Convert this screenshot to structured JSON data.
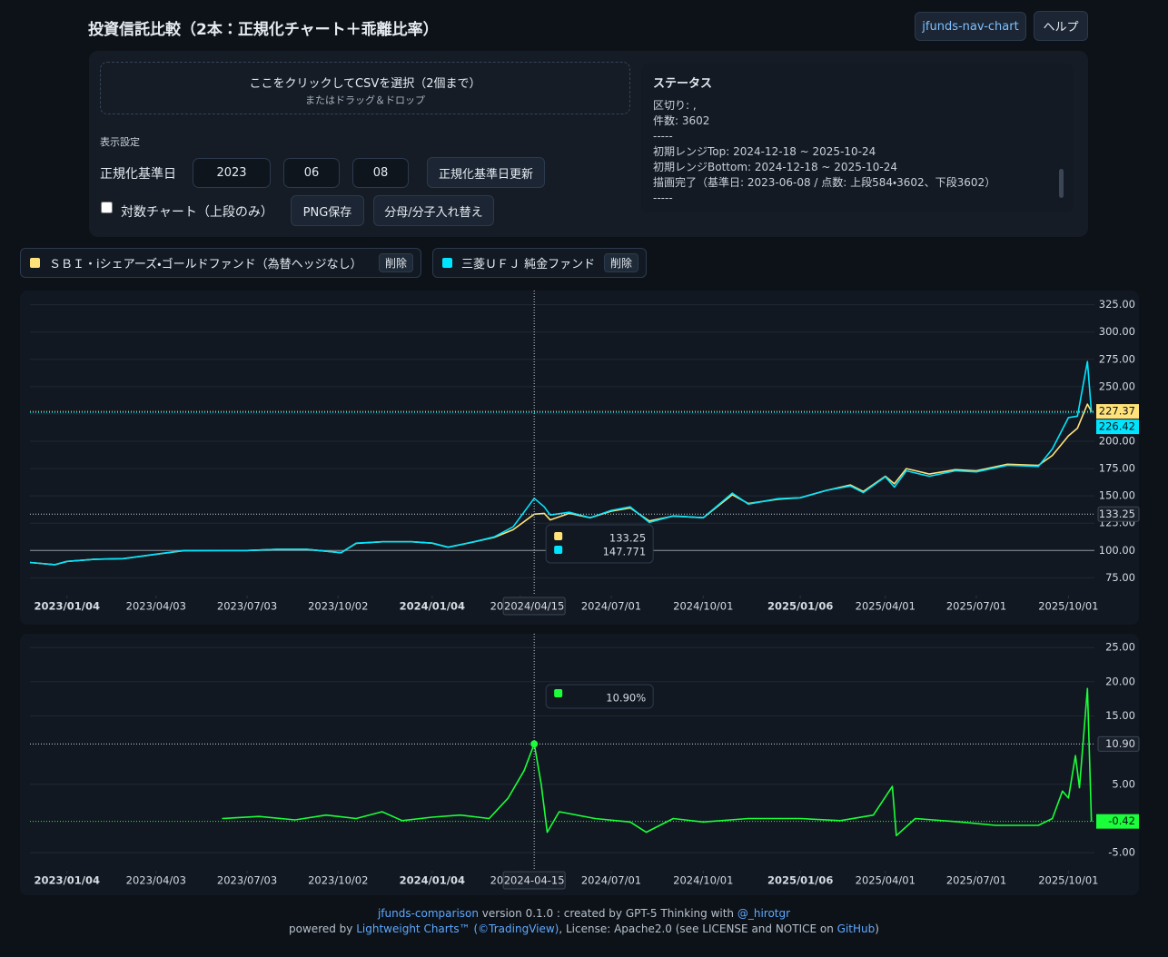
{
  "header": {
    "title": "投資信託比較（2本：正規化チャート＋乖離比率）",
    "link_button": "jfunds-nav-chart",
    "help_button": "ヘルプ"
  },
  "upload": {
    "title": "ここをクリックしてCSVを選択（2個まで）",
    "subtitle": "またはドラッグ＆ドロップ"
  },
  "settings": {
    "label": "表示設定",
    "base_date_label": "正規化基準日",
    "year": "2023",
    "month": "06",
    "day": "08",
    "update_button": "正規化基準日更新",
    "log_label": "対数チャート（上段のみ）",
    "log_checked": false,
    "png_button": "PNG保存",
    "swap_button": "分母/分子入れ替え"
  },
  "status": {
    "title": "ステータス",
    "lines": [
      "区切り: ,",
      "件数: 3602",
      "-----",
      "初期レンジTop: 2024-12-18 ~ 2025-10-24",
      "初期レンジBottom: 2024-12-18 ~ 2025-10-24",
      "描画完了（基準日: 2023-06-08 / 点数: 上段584・3602、下段3602）",
      "-----"
    ]
  },
  "delete_button": "削除",
  "chart_data": [
    {
      "type": "line",
      "x": [
        "2022-11-28",
        "2022-12-23",
        "2023-01-04",
        "2023-02-01",
        "2023-03-01",
        "2023-04-03",
        "2023-05-01",
        "2023-06-08",
        "2023-07-03",
        "2023-08-01",
        "2023-09-01",
        "2023-10-05",
        "2023-10-20",
        "2023-11-15",
        "2023-12-15",
        "2024-01-04",
        "2024-01-20",
        "2024-02-15",
        "2024-03-06",
        "2024-03-25",
        "2024-04-15",
        "2024-04-25",
        "2024-05-01",
        "2024-05-20",
        "2024-06-10",
        "2024-07-01",
        "2024-07-20",
        "2024-08-08",
        "2024-09-01",
        "2024-10-01",
        "2024-10-30",
        "2024-11-15",
        "2024-12-15",
        "2025-01-06",
        "2025-02-01",
        "2025-02-25",
        "2025-03-10",
        "2025-04-01",
        "2025-04-10",
        "2025-04-22",
        "2025-05-15",
        "2025-06-10",
        "2025-07-01",
        "2025-08-01",
        "2025-09-01",
        "2025-09-15",
        "2025-10-01",
        "2025-10-10",
        "2025-10-20",
        "2025-10-24"
      ],
      "series": [
        {
          "name": "ＳＢＩ・iシェアーズ・ゴールドファンド（為替ヘッジなし）",
          "color": "#ffe27a",
          "values": [
            89,
            87,
            90,
            92,
            92.5,
            96.5,
            99.8,
            100,
            100,
            101,
            101,
            98,
            106.5,
            108,
            108,
            106.7,
            103,
            108,
            112,
            119,
            133.25,
            134,
            128,
            134,
            130,
            136,
            139,
            127,
            131.5,
            130,
            151,
            143,
            147,
            148.3,
            155,
            160,
            154,
            168,
            161,
            175,
            170,
            174,
            173,
            179,
            178,
            187,
            205,
            212,
            234,
            227.37
          ]
        },
        {
          "name": "三菱ＵＦＪ 純金ファンド",
          "color": "#00e5ff",
          "values": [
            89,
            87,
            90,
            92,
            92.5,
            96.7,
            100,
            100,
            100,
            101,
            101,
            98,
            106.7,
            108,
            108,
            106.7,
            103,
            108,
            112.5,
            121.7,
            147.771,
            140,
            132.5,
            135,
            130,
            136.7,
            140,
            125.8,
            131.7,
            130,
            152.5,
            142.5,
            147.5,
            148.3,
            155,
            159,
            153,
            167.5,
            158,
            173,
            168,
            173,
            172,
            178,
            177,
            193,
            221.7,
            223,
            273,
            226.42
          ]
        }
      ],
      "xlim": [
        "2022-11-28",
        "2025-10-27"
      ],
      "xticks": [
        {
          "value": "2023-01-04",
          "label": "2023/01/04"
        },
        {
          "value": "2023-04-03",
          "label": "2023/04/03"
        },
        {
          "value": "2023-07-03",
          "label": "2023/07/03"
        },
        {
          "value": "2023-10-02",
          "label": "2023/10/02"
        },
        {
          "value": "2024-01-04",
          "label": "2024/01/04"
        },
        {
          "value": "2024-04-01",
          "label": "2024/04/01"
        },
        {
          "value": "2024-07-01",
          "label": "2024/07/01"
        },
        {
          "value": "2024-10-01",
          "label": "2024/10/01"
        },
        {
          "value": "2025-01-06",
          "label": "2025/01/06"
        },
        {
          "value": "2025-04-01",
          "label": "2025/04/01"
        },
        {
          "value": "2025-07-01",
          "label": "2025/07/01"
        },
        {
          "value": "2025-10-01",
          "label": "2025/10/01"
        }
      ],
      "ylim": [
        62,
        338
      ],
      "yticks": [
        {
          "value": 75,
          "label": "75.00"
        },
        {
          "value": 100,
          "label": "100.00"
        },
        {
          "value": 125,
          "label": "125.00"
        },
        {
          "value": 150,
          "label": "150.00"
        },
        {
          "value": 175,
          "label": "175.00"
        },
        {
          "value": 200,
          "label": "200.00"
        },
        {
          "value": 225,
          "label": "225.00"
        },
        {
          "value": 250,
          "label": "250.00"
        },
        {
          "value": 275,
          "label": "275.00"
        },
        {
          "value": 300,
          "label": "300.00"
        },
        {
          "value": 325,
          "label": "325.00"
        }
      ],
      "grid": true,
      "baseline": 100,
      "crosshair": {
        "x": "2024-04-15",
        "label": "2024/04/15",
        "values": [
          133.25,
          147.771
        ]
      }
    },
    {
      "type": "line",
      "x": [
        "2023-06-08",
        "2023-07-15",
        "2023-08-20",
        "2023-09-20",
        "2023-10-20",
        "2023-11-15",
        "2023-12-05",
        "2024-01-04",
        "2024-02-01",
        "2024-03-01",
        "2024-03-20",
        "2024-04-05",
        "2024-04-15",
        "2024-04-22",
        "2024-04-28",
        "2024-05-10",
        "2024-06-15",
        "2024-07-20",
        "2024-08-05",
        "2024-09-01",
        "2024-10-01",
        "2024-11-15",
        "2025-01-06",
        "2025-02-15",
        "2025-03-20",
        "2025-04-08",
        "2025-04-12",
        "2025-05-01",
        "2025-06-15",
        "2025-07-20",
        "2025-09-01",
        "2025-09-15",
        "2025-09-25",
        "2025-10-01",
        "2025-10-08",
        "2025-10-12",
        "2025-10-20",
        "2025-10-24"
      ],
      "series": [
        {
          "name": "乖離比率",
          "color": "#1aff3a",
          "values": [
            0,
            0.3,
            -0.2,
            0.5,
            0,
            1,
            -0.3,
            0.2,
            0.5,
            0,
            3,
            7,
            10.9,
            5,
            -2,
            1,
            0,
            -0.5,
            -2,
            0,
            -0.5,
            0,
            0,
            -0.3,
            0.5,
            4.7,
            -2.5,
            0,
            -0.5,
            -1,
            -1,
            0,
            4,
            3,
            9.2,
            4.5,
            19,
            -0.42
          ]
        }
      ],
      "xlim": [
        "2022-11-28",
        "2025-10-27"
      ],
      "xticks": [
        {
          "value": "2023-01-04",
          "label": "2023/01/04"
        },
        {
          "value": "2023-04-03",
          "label": "2023/04/03"
        },
        {
          "value": "2023-07-03",
          "label": "2023/07/03"
        },
        {
          "value": "2023-10-02",
          "label": "2023/10/02"
        },
        {
          "value": "2024-01-04",
          "label": "2024/01/04"
        },
        {
          "value": "2024-04-01",
          "label": "2024/04/01"
        },
        {
          "value": "2024-07-01",
          "label": "2024/07/01"
        },
        {
          "value": "2024-10-01",
          "label": "2024/10/01"
        },
        {
          "value": "2025-01-06",
          "label": "2025/01/06"
        },
        {
          "value": "2025-04-01",
          "label": "2025/04/01"
        },
        {
          "value": "2025-07-01",
          "label": "2025/07/01"
        },
        {
          "value": "2025-10-01",
          "label": "2025/10/01"
        }
      ],
      "ylim": [
        -7.1,
        27
      ],
      "yticks": [
        {
          "value": -5,
          "label": "-5.00"
        },
        {
          "value": 5,
          "label": "5.00"
        },
        {
          "value": 15,
          "label": "15.00"
        },
        {
          "value": 20,
          "label": "20.00"
        },
        {
          "value": 25,
          "label": "25.00"
        }
      ],
      "grid": true,
      "crosshair": {
        "x": "2024-04-15",
        "label": "2024-04-15",
        "values": [
          {
            "value": 10.9,
            "label": "10.90%"
          }
        ],
        "axis_label": {
          "value": 10.9,
          "label": "10.90"
        }
      }
    }
  ],
  "footer": {
    "link": "jfunds-comparison",
    "text1": " version 0.1.0 : created by GPT-5 Thinking with ",
    "author": "@_hirotgr",
    "text2": "powered by ",
    "lib": "Lightweight Charts™ (©TradingView)",
    "text3": ", License: Apache2.0 (see LICENSE and NOTICE on ",
    "github": "GitHub",
    "text4": ")"
  }
}
